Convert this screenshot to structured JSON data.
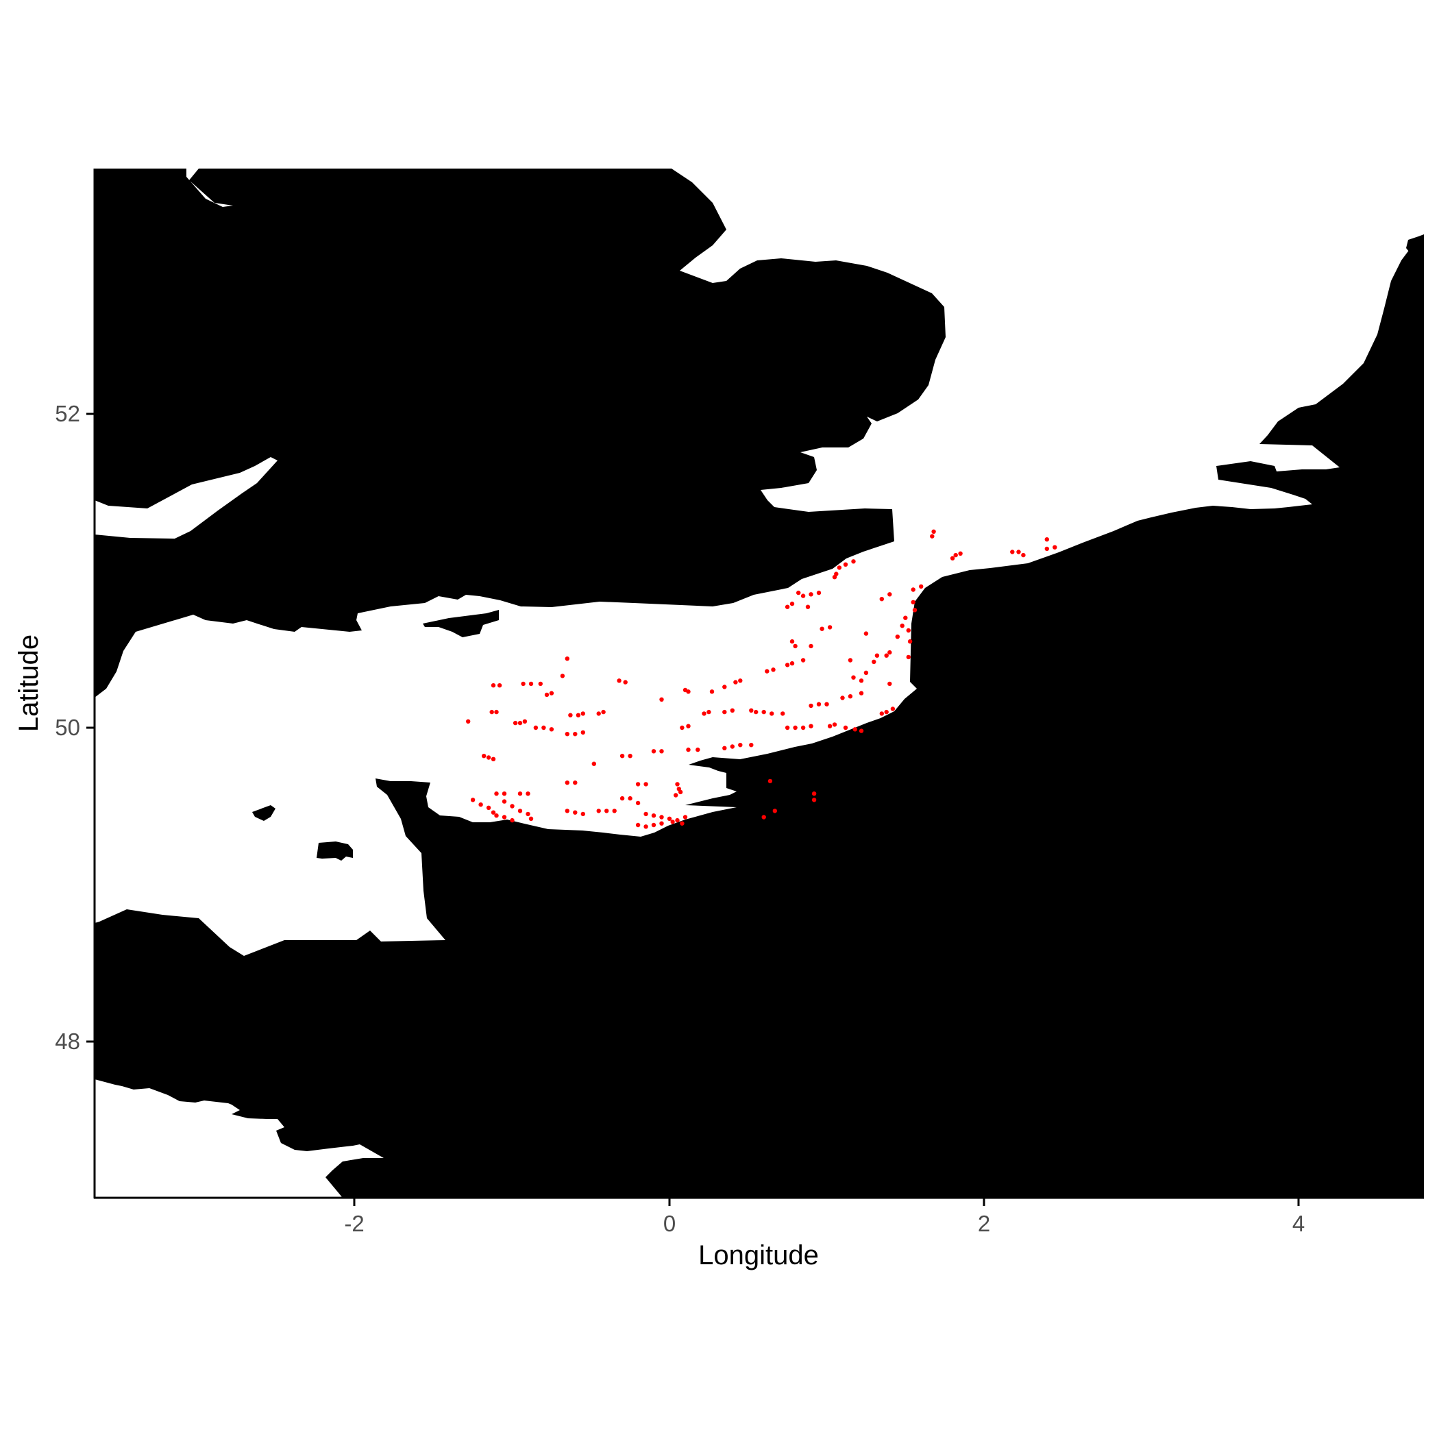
{
  "chart_data": {
    "type": "scatter",
    "title": "",
    "xlabel": "Longitude",
    "ylabel": "Latitude",
    "xlim": [
      -3.65,
      4.8
    ],
    "ylim": [
      47.0,
      53.55
    ],
    "x_ticks": [
      -2,
      0,
      2,
      4
    ],
    "y_ticks": [
      48,
      50,
      52
    ],
    "x_tick_labels": [
      "-2",
      "0",
      "2",
      "4"
    ],
    "y_tick_labels": [
      "48",
      "50",
      "52"
    ],
    "grid": false,
    "legend": "none",
    "land_color": "#000000",
    "sea_color": "#ffffff",
    "point_color": "#ff0000",
    "points": [
      [
        1.68,
        51.25
      ],
      [
        1.67,
        51.22
      ],
      [
        1.85,
        51.11
      ],
      [
        1.82,
        51.1
      ],
      [
        1.8,
        51.08
      ],
      [
        2.18,
        51.12
      ],
      [
        2.22,
        51.12
      ],
      [
        2.25,
        51.1
      ],
      [
        2.4,
        51.2
      ],
      [
        2.4,
        51.14
      ],
      [
        2.45,
        51.15
      ],
      [
        1.17,
        51.06
      ],
      [
        1.12,
        51.04
      ],
      [
        1.08,
        51.02
      ],
      [
        1.06,
        50.98
      ],
      [
        1.05,
        50.96
      ],
      [
        1.6,
        50.9
      ],
      [
        1.55,
        50.88
      ],
      [
        1.4,
        50.85
      ],
      [
        1.35,
        50.82
      ],
      [
        0.82,
        50.86
      ],
      [
        0.85,
        50.84
      ],
      [
        0.9,
        50.85
      ],
      [
        0.95,
        50.86
      ],
      [
        0.78,
        50.79
      ],
      [
        0.75,
        50.77
      ],
      [
        0.88,
        50.77
      ],
      [
        1.55,
        50.8
      ],
      [
        1.56,
        50.75
      ],
      [
        1.5,
        50.7
      ],
      [
        1.48,
        50.65
      ],
      [
        1.52,
        50.62
      ],
      [
        1.53,
        50.55
      ],
      [
        1.52,
        50.45
      ],
      [
        1.02,
        50.64
      ],
      [
        0.97,
        50.63
      ],
      [
        1.25,
        50.6
      ],
      [
        1.45,
        50.58
      ],
      [
        0.78,
        50.55
      ],
      [
        0.8,
        50.52
      ],
      [
        0.9,
        50.52
      ],
      [
        0.85,
        50.43
      ],
      [
        0.78,
        50.41
      ],
      [
        0.75,
        50.4
      ],
      [
        1.32,
        50.46
      ],
      [
        1.38,
        50.46
      ],
      [
        1.4,
        50.48
      ],
      [
        1.3,
        50.42
      ],
      [
        1.15,
        50.43
      ],
      [
        1.17,
        50.32
      ],
      [
        1.22,
        50.3
      ],
      [
        1.25,
        50.35
      ],
      [
        1.4,
        50.28
      ],
      [
        0.62,
        50.36
      ],
      [
        0.66,
        50.37
      ],
      [
        0.45,
        50.3
      ],
      [
        0.42,
        50.29
      ],
      [
        0.35,
        50.26
      ],
      [
        -0.28,
        50.29
      ],
      [
        -0.32,
        50.3
      ],
      [
        -1.12,
        50.27
      ],
      [
        -1.08,
        50.27
      ],
      [
        -0.93,
        50.28
      ],
      [
        -0.88,
        50.28
      ],
      [
        -0.82,
        50.28
      ],
      [
        -0.65,
        50.44
      ],
      [
        -0.68,
        50.33
      ],
      [
        -0.78,
        50.21
      ],
      [
        -0.75,
        50.22
      ],
      [
        0.1,
        50.24
      ],
      [
        0.12,
        50.23
      ],
      [
        -0.05,
        50.18
      ],
      [
        0.27,
        50.23
      ],
      [
        -1.28,
        50.04
      ],
      [
        -1.13,
        50.1
      ],
      [
        -1.1,
        50.1
      ],
      [
        -0.98,
        50.03
      ],
      [
        -0.95,
        50.03
      ],
      [
        -0.92,
        50.04
      ],
      [
        -0.85,
        50.0
      ],
      [
        -0.8,
        50.0
      ],
      [
        -0.75,
        49.99
      ],
      [
        -0.65,
        49.96
      ],
      [
        -0.6,
        49.96
      ],
      [
        -0.55,
        49.97
      ],
      [
        -0.63,
        50.08
      ],
      [
        -0.58,
        50.08
      ],
      [
        -0.55,
        50.09
      ],
      [
        -0.45,
        50.09
      ],
      [
        -0.42,
        50.1
      ],
      [
        -0.48,
        49.77
      ],
      [
        -1.18,
        49.82
      ],
      [
        -1.15,
        49.81
      ],
      [
        -1.12,
        49.8
      ],
      [
        -0.3,
        49.82
      ],
      [
        -0.25,
        49.82
      ],
      [
        -0.1,
        49.85
      ],
      [
        -0.05,
        49.85
      ],
      [
        0.08,
        50.0
      ],
      [
        0.12,
        50.01
      ],
      [
        0.22,
        50.09
      ],
      [
        0.25,
        50.1
      ],
      [
        0.35,
        50.1
      ],
      [
        0.4,
        50.11
      ],
      [
        0.52,
        50.11
      ],
      [
        0.55,
        50.1
      ],
      [
        0.6,
        50.1
      ],
      [
        0.65,
        50.09
      ],
      [
        0.72,
        50.09
      ],
      [
        0.75,
        50.0
      ],
      [
        0.8,
        50.0
      ],
      [
        0.85,
        50.0
      ],
      [
        0.9,
        50.01
      ],
      [
        0.9,
        50.14
      ],
      [
        0.95,
        50.15
      ],
      [
        1.0,
        50.15
      ],
      [
        1.1,
        50.19
      ],
      [
        1.15,
        50.2
      ],
      [
        1.22,
        50.22
      ],
      [
        1.02,
        50.01
      ],
      [
        1.05,
        50.02
      ],
      [
        1.12,
        50.0
      ],
      [
        1.18,
        49.99
      ],
      [
        1.22,
        49.98
      ],
      [
        1.35,
        50.09
      ],
      [
        1.38,
        50.1
      ],
      [
        1.42,
        50.12
      ],
      [
        0.12,
        49.86
      ],
      [
        0.18,
        49.86
      ],
      [
        0.35,
        49.87
      ],
      [
        0.4,
        49.88
      ],
      [
        0.45,
        49.89
      ],
      [
        0.52,
        49.89
      ],
      [
        -0.65,
        49.65
      ],
      [
        -0.6,
        49.65
      ],
      [
        -0.2,
        49.64
      ],
      [
        -0.15,
        49.64
      ],
      [
        0.05,
        49.64
      ],
      [
        0.06,
        49.61
      ],
      [
        0.07,
        49.59
      ],
      [
        0.04,
        49.57
      ],
      [
        -1.1,
        49.58
      ],
      [
        -1.05,
        49.58
      ],
      [
        -0.95,
        49.58
      ],
      [
        -0.9,
        49.58
      ],
      [
        -1.25,
        49.54
      ],
      [
        -1.2,
        49.51
      ],
      [
        -1.15,
        49.49
      ],
      [
        -1.12,
        49.46
      ],
      [
        -1.05,
        49.53
      ],
      [
        -1.0,
        49.5
      ],
      [
        -0.95,
        49.47
      ],
      [
        -0.9,
        49.45
      ],
      [
        -0.88,
        49.42
      ],
      [
        -1.1,
        49.44
      ],
      [
        -1.05,
        49.43
      ],
      [
        -1.0,
        49.41
      ],
      [
        -0.65,
        49.47
      ],
      [
        -0.6,
        49.46
      ],
      [
        -0.55,
        49.45
      ],
      [
        -0.45,
        49.47
      ],
      [
        -0.4,
        49.47
      ],
      [
        -0.35,
        49.47
      ],
      [
        -0.3,
        49.55
      ],
      [
        -0.25,
        49.55
      ],
      [
        -0.2,
        49.52
      ],
      [
        -0.15,
        49.45
      ],
      [
        -0.1,
        49.44
      ],
      [
        -0.05,
        49.43
      ],
      [
        0.0,
        49.42
      ],
      [
        0.05,
        49.41
      ],
      [
        -0.2,
        49.38
      ],
      [
        -0.15,
        49.37
      ],
      [
        -0.1,
        49.38
      ],
      [
        -0.05,
        49.39
      ],
      [
        0.02,
        49.4
      ],
      [
        0.08,
        49.39
      ],
      [
        0.1,
        49.43
      ],
      [
        0.64,
        49.66
      ],
      [
        0.92,
        49.58
      ],
      [
        0.92,
        49.54
      ],
      [
        0.67,
        49.47
      ],
      [
        0.6,
        49.43
      ]
    ]
  }
}
